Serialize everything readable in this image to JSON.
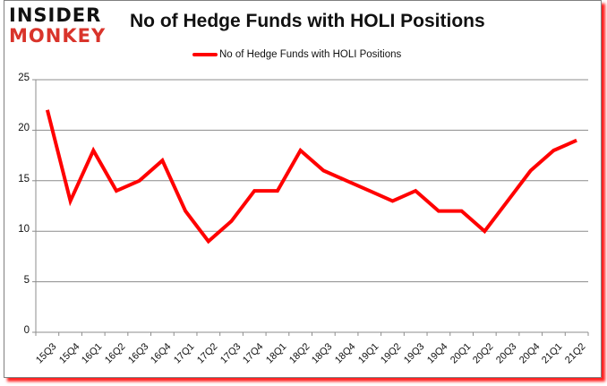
{
  "branding": {
    "logo_line1": "INSIDER",
    "logo_line2": "MONKEY",
    "logo_color_dark": "#111111",
    "logo_color_accent": "#d9342b"
  },
  "chart_data": {
    "type": "line",
    "title": "No of Hedge Funds with HOLI Positions",
    "xlabel": "",
    "ylabel": "",
    "ylim": [
      0,
      25
    ],
    "yticks": [
      0,
      5,
      10,
      15,
      20,
      25
    ],
    "grid": true,
    "legend_position": "top",
    "categories": [
      "15Q3",
      "15Q4",
      "16Q1",
      "16Q2",
      "16Q3",
      "16Q4",
      "17Q1",
      "17Q2",
      "17Q3",
      "17Q4",
      "18Q1",
      "18Q2",
      "18Q3",
      "18Q4",
      "19Q1",
      "19Q2",
      "19Q3",
      "19Q4",
      "20Q1",
      "20Q2",
      "20Q3",
      "20Q4",
      "21Q1",
      "21Q2"
    ],
    "series": [
      {
        "name": "No of Hedge Funds with HOLI Positions",
        "color": "#ff0000",
        "values": [
          22,
          13,
          18,
          14,
          15,
          17,
          12,
          9,
          11,
          14,
          14,
          18,
          16,
          15,
          14,
          13,
          14,
          12,
          12,
          10,
          13,
          16,
          18,
          19
        ]
      }
    ]
  }
}
